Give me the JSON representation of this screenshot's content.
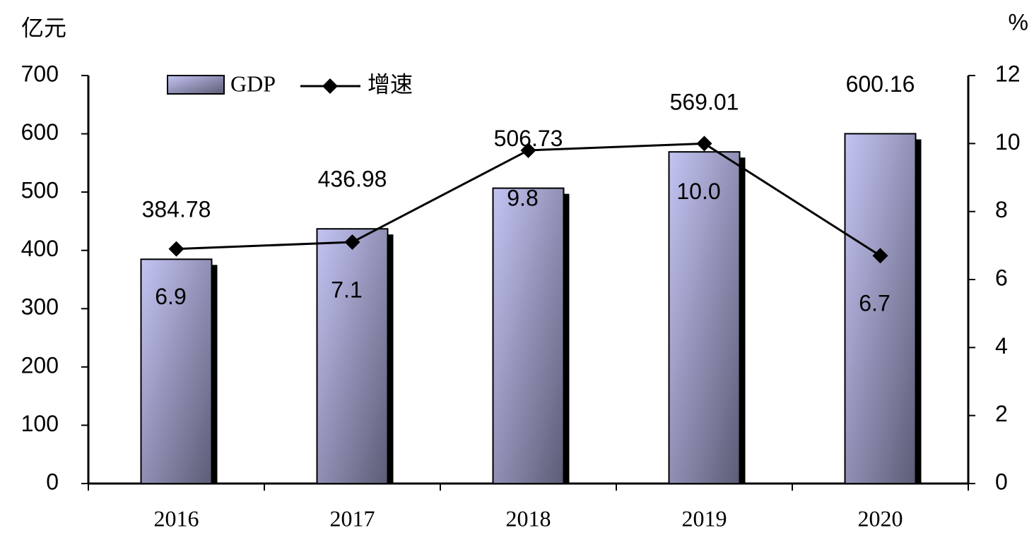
{
  "chart_data": {
    "type": "bar-line",
    "y_label": "亿元",
    "y2_label": "%",
    "categories": [
      "2016",
      "2017",
      "2018",
      "2019",
      "2020"
    ],
    "series": [
      {
        "name": "GDP",
        "type": "bar",
        "color": "#c4c4f4",
        "values": [
          384.78,
          436.98,
          506.73,
          569.01,
          600.16
        ]
      },
      {
        "name": "增速",
        "type": "line",
        "axis": "y2",
        "color": "#000000",
        "values": [
          6.9,
          7.1,
          9.8,
          10.0,
          6.7
        ],
        "value_labels": [
          "6.9",
          "7.1",
          "9.8",
          "10.0",
          "6.7"
        ]
      }
    ],
    "ylim": [
      0,
      700
    ],
    "yticks": [
      0,
      100,
      200,
      300,
      400,
      500,
      600,
      700
    ],
    "y2lim": [
      0,
      12
    ],
    "y2ticks": [
      0,
      2,
      4,
      6,
      8,
      10,
      12
    ],
    "legend": "top-left"
  }
}
